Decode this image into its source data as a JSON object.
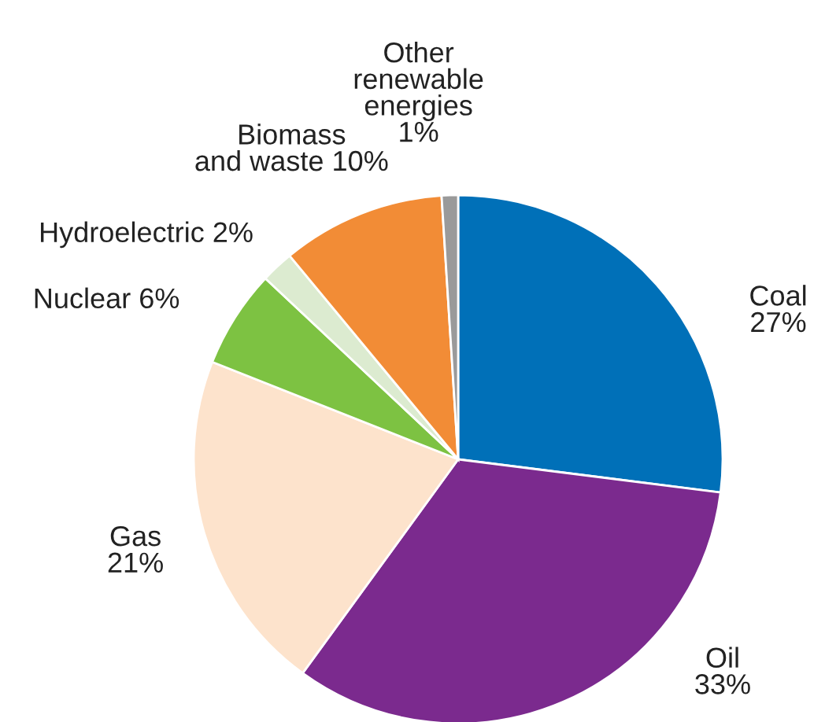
{
  "chart_data": {
    "type": "pie",
    "categories": [
      "Coal",
      "Oil",
      "Gas",
      "Nuclear",
      "Hydroelectric",
      "Biomass\nand waste",
      "Other\nrenewable\nenergies"
    ],
    "values": [
      27,
      33,
      21,
      6,
      2,
      10,
      1
    ],
    "value_labels": [
      "27%",
      "33%",
      "21%",
      "6%",
      "2%",
      "10%",
      "1%"
    ],
    "colors": [
      "#0070b8",
      "#7b2a8e",
      "#fde3cc",
      "#7dc242",
      "#dcebd0",
      "#f28c36",
      "#9a9a9a"
    ]
  }
}
